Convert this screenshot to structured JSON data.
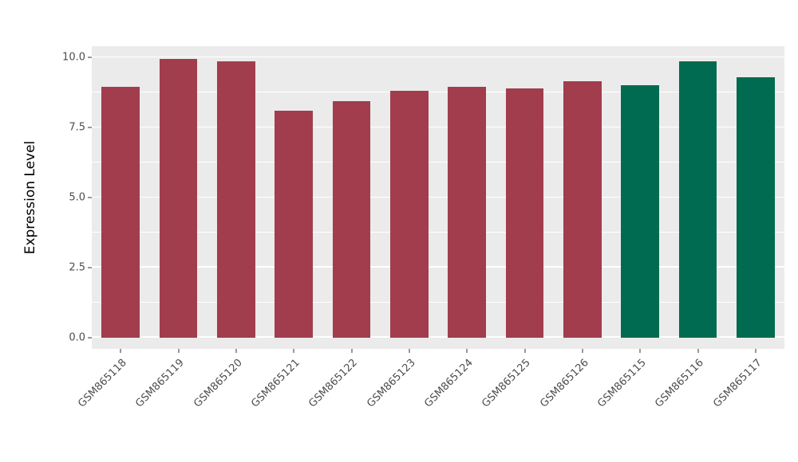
{
  "figure": {
    "background": "#FFFFFF",
    "panel_background": "#EBEBEB",
    "grid_color": "#FFFFFF",
    "tick_color": "#333333",
    "axis_text_color": "#4D4D4D",
    "axis_title_color": "#000000"
  },
  "chart_data": {
    "type": "bar",
    "title": "",
    "xlabel": "",
    "ylabel": "Expression Level",
    "categories": [
      "GSM865118",
      "GSM865119",
      "GSM865120",
      "GSM865121",
      "GSM865122",
      "GSM865123",
      "GSM865124",
      "GSM865125",
      "GSM865126",
      "GSM865115",
      "GSM865116",
      "GSM865117"
    ],
    "values": [
      8.95,
      9.95,
      9.85,
      8.1,
      8.45,
      8.8,
      8.95,
      8.9,
      9.15,
      9.0,
      9.85,
      9.3
    ],
    "bar_groups": [
      "group1",
      "group1",
      "group1",
      "group1",
      "group1",
      "group1",
      "group1",
      "group1",
      "group1",
      "group2",
      "group2",
      "group2"
    ],
    "palette": {
      "group1": "#A13D4D",
      "group2": "#006B50"
    },
    "yticks": [
      0,
      2.5,
      5,
      7.5,
      10
    ],
    "ytick_labels": [
      "0.0",
      "2.5",
      "5.0",
      "7.5",
      "10.0"
    ],
    "yticks_minor": [
      1.25,
      3.75,
      6.25,
      8.75
    ],
    "panel_ylim": [
      -0.4,
      10.4
    ],
    "grid": true,
    "legend": "none"
  }
}
